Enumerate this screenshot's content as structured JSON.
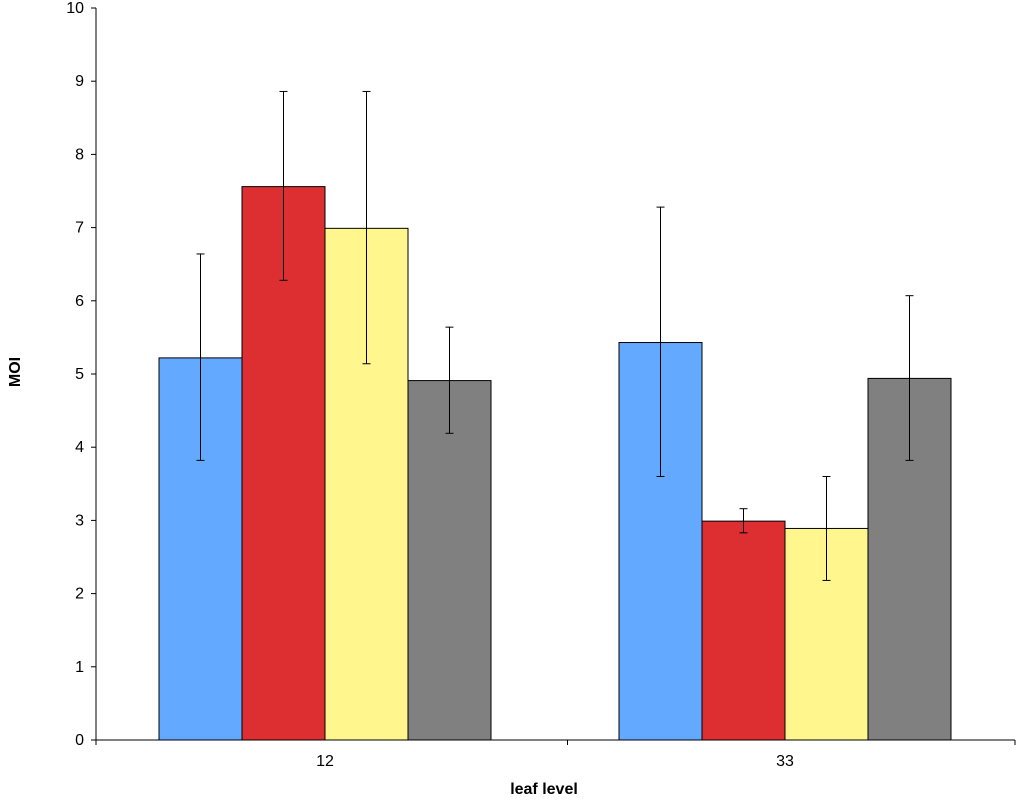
{
  "chart_data": {
    "type": "bar",
    "title": "",
    "xlabel": "leaf level",
    "ylabel": "MOI",
    "ylim": [
      0,
      10
    ],
    "yticks": [
      0,
      1,
      2,
      3,
      4,
      5,
      6,
      7,
      8,
      9,
      10
    ],
    "categories": [
      "12",
      "33"
    ],
    "grid": false,
    "legend": "none",
    "series": [
      {
        "color": "#63a9ff",
        "values": [
          5.22,
          5.43
        ],
        "err_low": [
          3.82,
          3.6
        ],
        "err_high": [
          6.64,
          7.28
        ]
      },
      {
        "color": "#dd2e31",
        "values": [
          7.56,
          2.99
        ],
        "err_low": [
          6.28,
          2.83
        ],
        "err_high": [
          8.86,
          3.16
        ]
      },
      {
        "color": "#fff68e",
        "values": [
          6.99,
          2.89
        ],
        "err_low": [
          5.14,
          2.18
        ],
        "err_high": [
          8.86,
          3.6
        ]
      },
      {
        "color": "#808080",
        "values": [
          4.91,
          4.94
        ],
        "err_low": [
          4.19,
          3.82
        ],
        "err_high": [
          5.64,
          6.07
        ]
      }
    ]
  }
}
